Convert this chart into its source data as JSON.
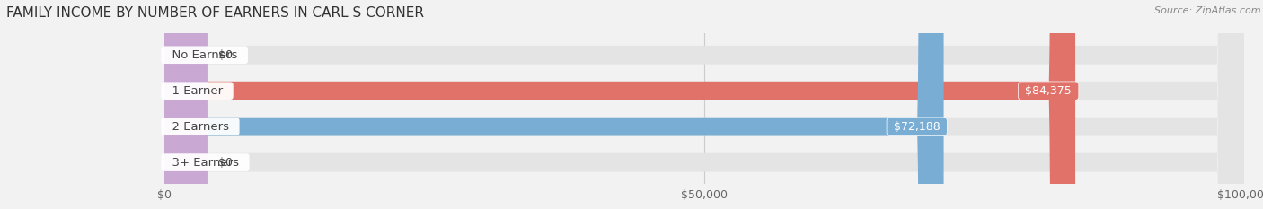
{
  "title": "FAMILY INCOME BY NUMBER OF EARNERS IN CARL S CORNER",
  "source": "Source: ZipAtlas.com",
  "categories": [
    "No Earners",
    "1 Earner",
    "2 Earners",
    "3+ Earners"
  ],
  "values": [
    0,
    84375,
    72188,
    0
  ],
  "bar_colors": [
    "#efc882",
    "#e0726a",
    "#7aadd4",
    "#c9a8d4"
  ],
  "xlim_max": 100000,
  "xticks": [
    0,
    50000,
    100000
  ],
  "xticklabels": [
    "$0",
    "$50,000",
    "$100,000"
  ],
  "background_color": "#f2f2f2",
  "bar_bg_color": "#e4e4e4",
  "value_labels": [
    "$0",
    "$84,375",
    "$72,188",
    "$0"
  ],
  "label_fontsize": 9.5,
  "title_fontsize": 11,
  "value_fontsize": 9
}
